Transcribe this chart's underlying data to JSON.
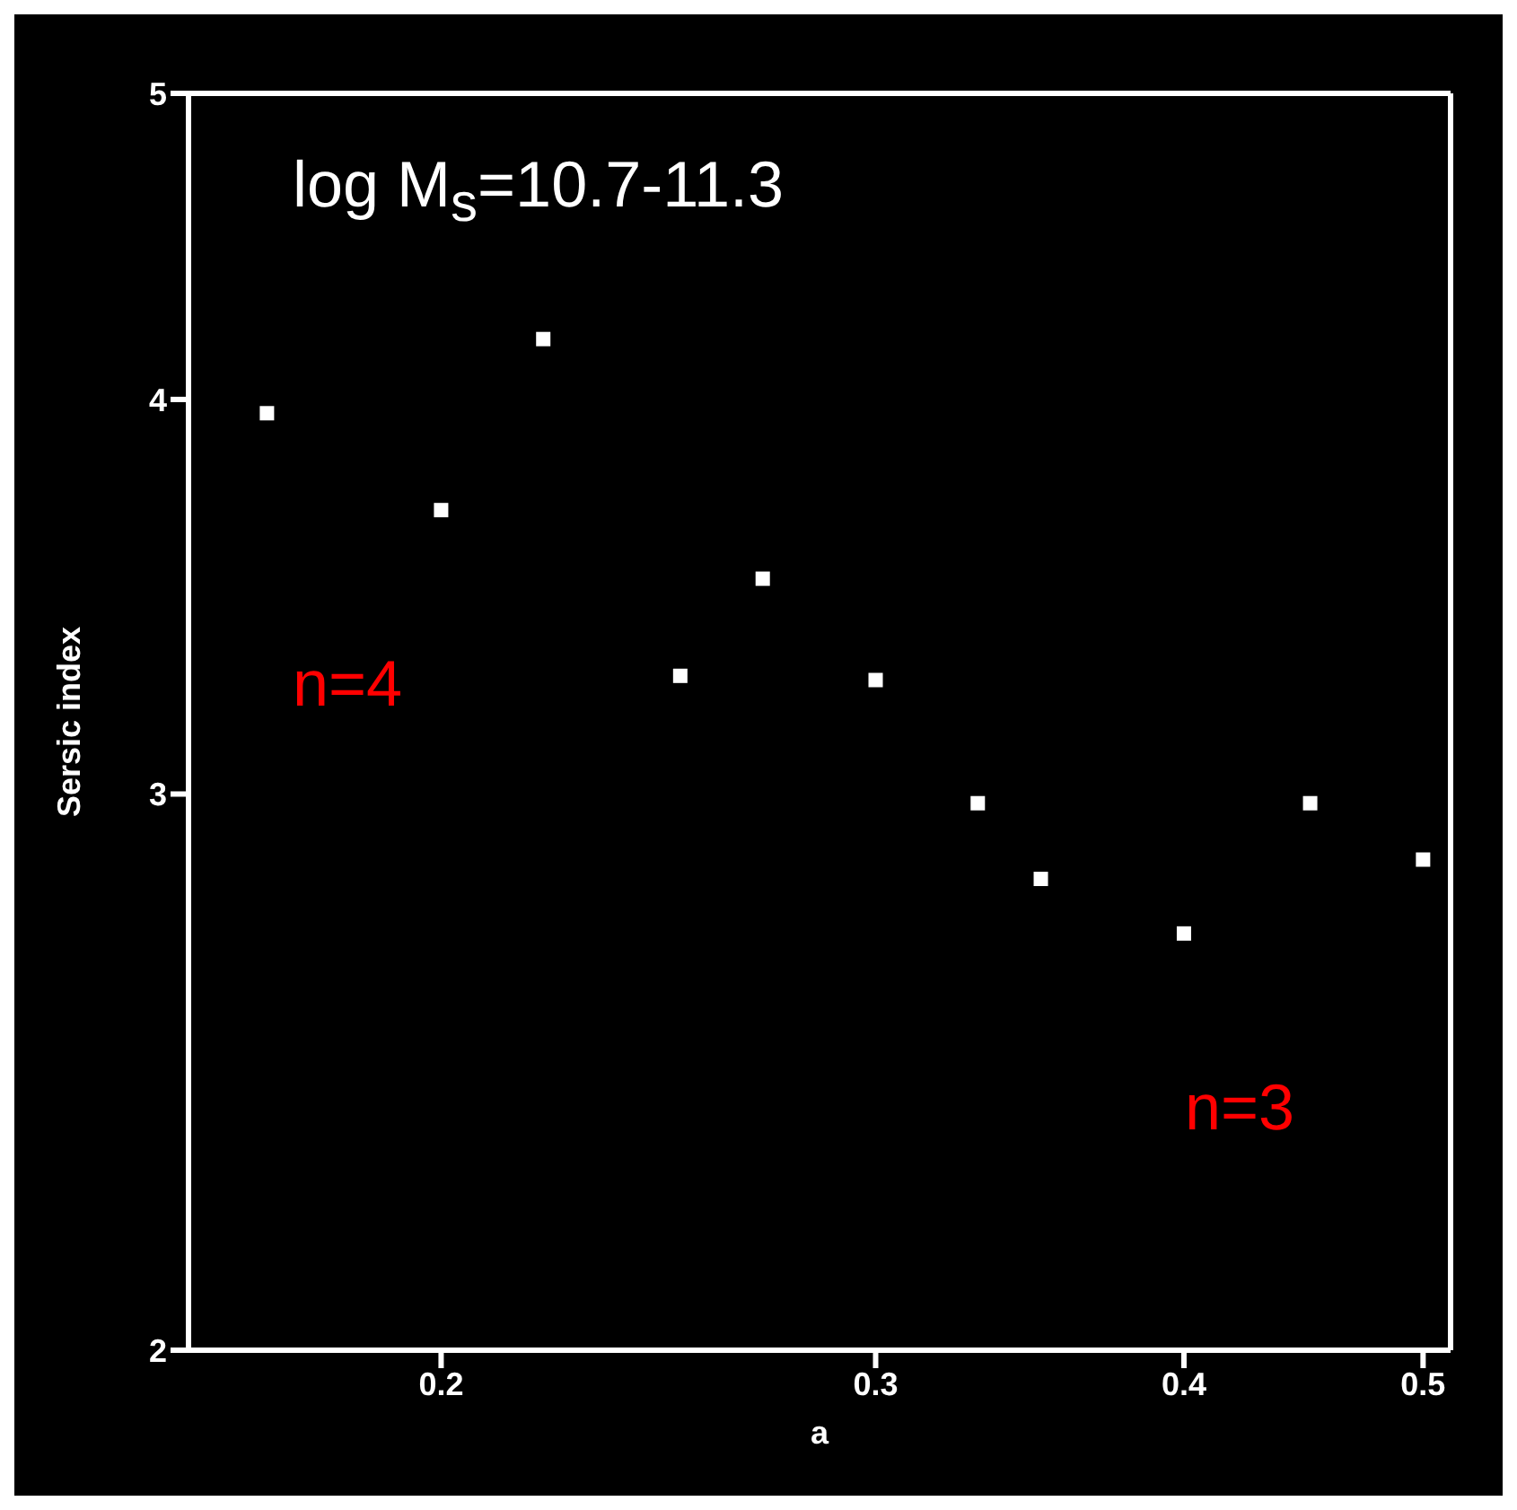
{
  "chart_data": {
    "type": "scatter",
    "xlabel": "a",
    "ylabel": "Sersic index",
    "x": [
      0.17,
      0.2,
      0.22,
      0.25,
      0.27,
      0.3,
      0.33,
      0.35,
      0.4,
      0.45,
      0.5
    ],
    "series": [
      {
        "color": "#ffffff",
        "values": [
          3.96,
          3.69,
          4.18,
          3.27,
          3.51,
          3.26,
          2.98,
          2.82,
          2.71,
          2.98,
          2.86
        ]
      }
    ],
    "xlim": [
      0.158,
      0.513
    ],
    "xticks": [
      0.2,
      0.3,
      0.4,
      0.5
    ],
    "ylim": [
      2,
      5
    ],
    "yticks": [
      2,
      3,
      4,
      5
    ],
    "log": "xy",
    "marker": "square",
    "annotations": [
      "log M$_{s}$=10.7-11.3",
      "n=4",
      "n=3"
    ]
  }
}
